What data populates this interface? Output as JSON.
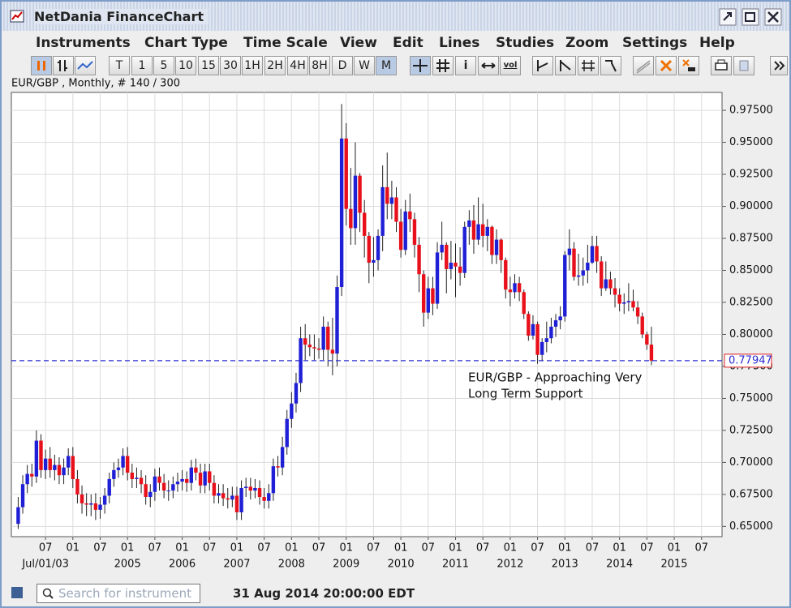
{
  "window": {
    "title": "NetDania FinanceChart"
  },
  "menu": [
    "Instruments",
    "Chart Type",
    "Time Scale",
    "View",
    "Edit",
    "Lines",
    "Studies",
    "Zoom",
    "Settings",
    "Help"
  ],
  "toolbar": {
    "timeframes": [
      "T",
      "1",
      "5",
      "10",
      "15",
      "30",
      "1H",
      "2H",
      "4H",
      "8H",
      "D",
      "W",
      "M"
    ],
    "tools": [
      "i",
      "vol"
    ]
  },
  "status": {
    "search_placeholder": "Search for instrument",
    "datetime": "31 Aug 2014 20:00:00 EDT"
  },
  "chart_data": {
    "type": "candlestick",
    "subtitle": "EUR/GBP , Monthly, # 140 / 300",
    "up_color": "#1f1fd6",
    "down_color": "#e8101a",
    "grid": true,
    "xlim": [
      -1.5,
      154.5
    ],
    "ylim": [
      0.642,
      0.989
    ],
    "yticks": [
      {
        "value": 0.65,
        "label": "0.65000"
      },
      {
        "value": 0.675,
        "label": "0.67500"
      },
      {
        "value": 0.7,
        "label": "0.70000"
      },
      {
        "value": 0.725,
        "label": "0.72500"
      },
      {
        "value": 0.75,
        "label": "0.75000"
      },
      {
        "value": 0.775,
        "label": "0.77500"
      },
      {
        "value": 0.8,
        "label": "0.80000"
      },
      {
        "value": 0.825,
        "label": "0.82500"
      },
      {
        "value": 0.85,
        "label": "0.85000"
      },
      {
        "value": 0.875,
        "label": "0.87500"
      },
      {
        "value": 0.9,
        "label": "0.90000"
      },
      {
        "value": 0.925,
        "label": "0.92500"
      },
      {
        "value": 0.95,
        "label": "0.95000"
      },
      {
        "value": 0.975,
        "label": "0.97500"
      }
    ],
    "xticks": [
      {
        "value": 6,
        "label": "07"
      },
      {
        "value": 12,
        "label": "01"
      },
      {
        "value": 18,
        "label": "07"
      },
      {
        "value": 24,
        "label": "01"
      },
      {
        "value": 30,
        "label": "07"
      },
      {
        "value": 36,
        "label": "01"
      },
      {
        "value": 42,
        "label": "07"
      },
      {
        "value": 48,
        "label": "01"
      },
      {
        "value": 54,
        "label": "07"
      },
      {
        "value": 60,
        "label": "01"
      },
      {
        "value": 66,
        "label": "07"
      },
      {
        "value": 72,
        "label": "01"
      },
      {
        "value": 78,
        "label": "07"
      },
      {
        "value": 84,
        "label": "01"
      },
      {
        "value": 90,
        "label": "07"
      },
      {
        "value": 96,
        "label": "01"
      },
      {
        "value": 102,
        "label": "07"
      },
      {
        "value": 108,
        "label": "01"
      },
      {
        "value": 114,
        "label": "07"
      },
      {
        "value": 120,
        "label": "01"
      },
      {
        "value": 126,
        "label": "07"
      },
      {
        "value": 132,
        "label": "01"
      },
      {
        "value": 138,
        "label": "07"
      },
      {
        "value": 144,
        "label": "01"
      },
      {
        "value": 150,
        "label": "07"
      }
    ],
    "xlabels2": [
      {
        "value": 6,
        "label": "Jul/01/03"
      },
      {
        "value": 24,
        "label": "2005"
      },
      {
        "value": 36,
        "label": "2006"
      },
      {
        "value": 48,
        "label": "2007"
      },
      {
        "value": 60,
        "label": "2008"
      },
      {
        "value": 72,
        "label": "2009"
      },
      {
        "value": 84,
        "label": "2010"
      },
      {
        "value": 96,
        "label": "2011"
      },
      {
        "value": 108,
        "label": "2012"
      },
      {
        "value": 120,
        "label": "2013"
      },
      {
        "value": 132,
        "label": "2014"
      },
      {
        "value": 144,
        "label": "2015"
      }
    ],
    "price_line": {
      "value": 0.77947,
      "label": "0.77947"
    },
    "annotation": [
      "EUR/GBP - Approaching Very",
      "Long Term Support"
    ],
    "candles": [
      [
        0.652,
        0.673,
        0.648,
        0.665
      ],
      [
        0.665,
        0.69,
        0.66,
        0.683
      ],
      [
        0.683,
        0.698,
        0.676,
        0.691
      ],
      [
        0.691,
        0.699,
        0.681,
        0.689
      ],
      [
        0.689,
        0.725,
        0.684,
        0.717
      ],
      [
        0.717,
        0.722,
        0.688,
        0.694
      ],
      [
        0.694,
        0.71,
        0.687,
        0.703
      ],
      [
        0.703,
        0.712,
        0.688,
        0.694
      ],
      [
        0.694,
        0.706,
        0.686,
        0.698
      ],
      [
        0.698,
        0.704,
        0.683,
        0.69
      ],
      [
        0.69,
        0.703,
        0.683,
        0.696
      ],
      [
        0.696,
        0.711,
        0.69,
        0.705
      ],
      [
        0.705,
        0.712,
        0.68,
        0.687
      ],
      [
        0.687,
        0.694,
        0.668,
        0.675
      ],
      [
        0.675,
        0.682,
        0.66,
        0.668
      ],
      [
        0.668,
        0.676,
        0.658,
        0.667
      ],
      [
        0.667,
        0.675,
        0.658,
        0.668
      ],
      [
        0.668,
        0.676,
        0.655,
        0.663
      ],
      [
        0.663,
        0.673,
        0.656,
        0.667
      ],
      [
        0.667,
        0.68,
        0.66,
        0.674
      ],
      [
        0.674,
        0.692,
        0.668,
        0.687
      ],
      [
        0.687,
        0.7,
        0.681,
        0.694
      ],
      [
        0.694,
        0.703,
        0.688,
        0.696
      ],
      [
        0.696,
        0.711,
        0.69,
        0.705
      ],
      [
        0.705,
        0.712,
        0.686,
        0.692
      ],
      [
        0.692,
        0.699,
        0.68,
        0.687
      ],
      [
        0.687,
        0.696,
        0.68,
        0.688
      ],
      [
        0.688,
        0.694,
        0.676,
        0.683
      ],
      [
        0.683,
        0.69,
        0.667,
        0.673
      ],
      [
        0.673,
        0.683,
        0.665,
        0.677
      ],
      [
        0.677,
        0.695,
        0.67,
        0.689
      ],
      [
        0.689,
        0.696,
        0.678,
        0.684
      ],
      [
        0.684,
        0.691,
        0.672,
        0.678
      ],
      [
        0.678,
        0.686,
        0.67,
        0.678
      ],
      [
        0.678,
        0.689,
        0.672,
        0.683
      ],
      [
        0.683,
        0.692,
        0.677,
        0.685
      ],
      [
        0.685,
        0.694,
        0.678,
        0.687
      ],
      [
        0.687,
        0.693,
        0.677,
        0.684
      ],
      [
        0.684,
        0.702,
        0.678,
        0.696
      ],
      [
        0.696,
        0.703,
        0.686,
        0.692
      ],
      [
        0.692,
        0.699,
        0.676,
        0.682
      ],
      [
        0.682,
        0.699,
        0.676,
        0.693
      ],
      [
        0.693,
        0.699,
        0.678,
        0.684
      ],
      [
        0.684,
        0.69,
        0.668,
        0.674
      ],
      [
        0.674,
        0.683,
        0.668,
        0.676
      ],
      [
        0.676,
        0.683,
        0.666,
        0.672
      ],
      [
        0.672,
        0.68,
        0.664,
        0.671
      ],
      [
        0.671,
        0.681,
        0.665,
        0.674
      ],
      [
        0.674,
        0.681,
        0.655,
        0.661
      ],
      [
        0.661,
        0.686,
        0.655,
        0.68
      ],
      [
        0.68,
        0.688,
        0.673,
        0.681
      ],
      [
        0.681,
        0.688,
        0.671,
        0.678
      ],
      [
        0.678,
        0.687,
        0.672,
        0.68
      ],
      [
        0.68,
        0.686,
        0.667,
        0.673
      ],
      [
        0.673,
        0.68,
        0.664,
        0.67
      ],
      [
        0.67,
        0.683,
        0.664,
        0.676
      ],
      [
        0.676,
        0.703,
        0.67,
        0.697
      ],
      [
        0.697,
        0.705,
        0.689,
        0.696
      ],
      [
        0.696,
        0.72,
        0.69,
        0.712
      ],
      [
        0.712,
        0.741,
        0.706,
        0.734
      ],
      [
        0.734,
        0.755,
        0.727,
        0.746
      ],
      [
        0.746,
        0.77,
        0.739,
        0.762
      ],
      [
        0.762,
        0.806,
        0.755,
        0.797
      ],
      [
        0.797,
        0.808,
        0.78,
        0.792
      ],
      [
        0.792,
        0.8,
        0.783,
        0.79
      ],
      [
        0.79,
        0.8,
        0.78,
        0.789
      ],
      [
        0.789,
        0.797,
        0.781,
        0.788
      ],
      [
        0.788,
        0.814,
        0.78,
        0.806
      ],
      [
        0.806,
        0.81,
        0.775,
        0.788
      ],
      [
        0.788,
        0.813,
        0.768,
        0.785
      ],
      [
        0.785,
        0.846,
        0.775,
        0.837
      ],
      [
        0.837,
        0.98,
        0.83,
        0.953
      ],
      [
        0.953,
        0.965,
        0.885,
        0.898
      ],
      [
        0.898,
        0.93,
        0.87,
        0.883
      ],
      [
        0.883,
        0.95,
        0.87,
        0.924
      ],
      [
        0.924,
        0.926,
        0.88,
        0.895
      ],
      [
        0.895,
        0.905,
        0.86,
        0.877
      ],
      [
        0.877,
        0.88,
        0.84,
        0.856
      ],
      [
        0.856,
        0.876,
        0.845,
        0.858
      ],
      [
        0.858,
        0.882,
        0.85,
        0.877
      ],
      [
        0.877,
        0.932,
        0.865,
        0.915
      ],
      [
        0.915,
        0.942,
        0.89,
        0.902
      ],
      [
        0.902,
        0.92,
        0.89,
        0.907
      ],
      [
        0.907,
        0.915,
        0.88,
        0.888
      ],
      [
        0.888,
        0.898,
        0.86,
        0.866
      ],
      [
        0.866,
        0.905,
        0.862,
        0.896
      ],
      [
        0.896,
        0.91,
        0.88,
        0.89
      ],
      [
        0.89,
        0.895,
        0.86,
        0.87
      ],
      [
        0.87,
        0.876,
        0.833,
        0.847
      ],
      [
        0.847,
        0.85,
        0.806,
        0.817
      ],
      [
        0.817,
        0.845,
        0.812,
        0.836
      ],
      [
        0.836,
        0.845,
        0.815,
        0.824
      ],
      [
        0.824,
        0.872,
        0.82,
        0.864
      ],
      [
        0.864,
        0.888,
        0.858,
        0.87
      ],
      [
        0.87,
        0.872,
        0.832,
        0.851
      ],
      [
        0.851,
        0.873,
        0.843,
        0.856
      ],
      [
        0.856,
        0.871,
        0.829,
        0.853
      ],
      [
        0.853,
        0.868,
        0.838,
        0.848
      ],
      [
        0.848,
        0.888,
        0.844,
        0.884
      ],
      [
        0.884,
        0.897,
        0.87,
        0.889
      ],
      [
        0.889,
        0.901,
        0.863,
        0.874
      ],
      [
        0.874,
        0.907,
        0.87,
        0.886
      ],
      [
        0.886,
        0.902,
        0.868,
        0.877
      ],
      [
        0.877,
        0.89,
        0.865,
        0.884
      ],
      [
        0.884,
        0.885,
        0.855,
        0.862
      ],
      [
        0.862,
        0.882,
        0.855,
        0.874
      ],
      [
        0.874,
        0.875,
        0.848,
        0.858
      ],
      [
        0.858,
        0.86,
        0.828,
        0.835
      ],
      [
        0.835,
        0.845,
        0.822,
        0.833
      ],
      [
        0.833,
        0.847,
        0.828,
        0.84
      ],
      [
        0.84,
        0.845,
        0.826,
        0.833
      ],
      [
        0.833,
        0.835,
        0.812,
        0.816
      ],
      [
        0.816,
        0.818,
        0.795,
        0.799
      ],
      [
        0.799,
        0.815,
        0.796,
        0.808
      ],
      [
        0.808,
        0.81,
        0.777,
        0.784
      ],
      [
        0.784,
        0.797,
        0.779,
        0.794
      ],
      [
        0.794,
        0.81,
        0.786,
        0.797
      ],
      [
        0.797,
        0.813,
        0.793,
        0.806
      ],
      [
        0.806,
        0.816,
        0.798,
        0.811
      ],
      [
        0.811,
        0.822,
        0.804,
        0.814
      ],
      [
        0.814,
        0.865,
        0.81,
        0.862
      ],
      [
        0.862,
        0.882,
        0.85,
        0.867
      ],
      [
        0.867,
        0.872,
        0.842,
        0.845
      ],
      [
        0.845,
        0.863,
        0.838,
        0.846
      ],
      [
        0.846,
        0.86,
        0.838,
        0.85
      ],
      [
        0.85,
        0.87,
        0.84,
        0.856
      ],
      [
        0.856,
        0.877,
        0.855,
        0.869
      ],
      [
        0.869,
        0.877,
        0.848,
        0.857
      ],
      [
        0.857,
        0.861,
        0.83,
        0.836
      ],
      [
        0.836,
        0.857,
        0.834,
        0.843
      ],
      [
        0.843,
        0.849,
        0.831,
        0.836
      ],
      [
        0.836,
        0.844,
        0.821,
        0.831
      ],
      [
        0.831,
        0.836,
        0.818,
        0.824
      ],
      [
        0.824,
        0.832,
        0.816,
        0.825
      ],
      [
        0.825,
        0.84,
        0.818,
        0.826
      ],
      [
        0.826,
        0.835,
        0.818,
        0.821
      ],
      [
        0.821,
        0.826,
        0.808,
        0.814
      ],
      [
        0.814,
        0.817,
        0.797,
        0.8
      ],
      [
        0.8,
        0.802,
        0.788,
        0.792
      ],
      [
        0.792,
        0.806,
        0.776,
        0.77947
      ]
    ]
  }
}
